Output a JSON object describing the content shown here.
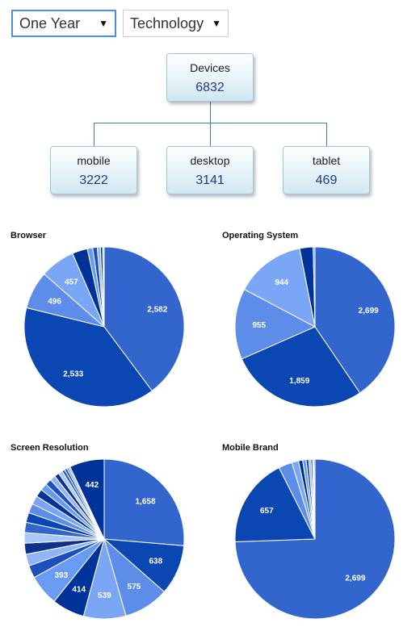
{
  "filters": {
    "period": {
      "value": "One Year"
    },
    "category": {
      "value": "Technology"
    }
  },
  "tree": {
    "root": {
      "label": "Devices",
      "value": "6832"
    },
    "children": [
      {
        "label": "mobile",
        "value": "3222"
      },
      {
        "label": "desktop",
        "value": "3141"
      },
      {
        "label": "tablet",
        "value": "469"
      }
    ]
  },
  "colors": {
    "palette": [
      "#3366cc",
      "#0a47b3",
      "#5d8de8",
      "#7aa6f5",
      "#003399",
      "#6a9bf2",
      "#1d4fc1",
      "#8db5f7",
      "#11308c",
      "#a9c8f9"
    ],
    "node_border": "#9cc7dc",
    "number_text": "#1f3a8a"
  },
  "chart_data": [
    {
      "type": "pie",
      "title": "Browser",
      "values": [
        2582,
        2533,
        496,
        457,
        200,
        70,
        60,
        40,
        30,
        20
      ],
      "labels": [
        "2,582",
        "2,533",
        "496",
        "457",
        "",
        "",
        "",
        "",
        "",
        ""
      ]
    },
    {
      "type": "pie",
      "title": "Operating System",
      "values": [
        2699,
        1859,
        955,
        944,
        180,
        25
      ],
      "labels": [
        "2,699",
        "1,859",
        "955",
        "944",
        "",
        ""
      ]
    },
    {
      "type": "pie",
      "title": "Screen Resolution",
      "values": [
        1658,
        638,
        575,
        539,
        414,
        393,
        160,
        150,
        140,
        135,
        130,
        125,
        120,
        110,
        100,
        90,
        80,
        70,
        60,
        50,
        40,
        30,
        25,
        20,
        442
      ],
      "labels": [
        "1,658",
        "638",
        "575",
        "539",
        "414",
        "393",
        "",
        "",
        "",
        "",
        "",
        "",
        "",
        "",
        "",
        "",
        "",
        "",
        "",
        "",
        "",
        "",
        "",
        "",
        "442"
      ]
    },
    {
      "type": "pie",
      "title": "Mobile Brand",
      "values": [
        2699,
        657,
        100,
        50,
        30,
        25,
        20,
        15,
        12,
        10,
        8
      ],
      "labels": [
        "2,699",
        "657",
        "",
        "",
        "",
        "",
        "",
        "",
        "",
        "",
        ""
      ]
    }
  ]
}
